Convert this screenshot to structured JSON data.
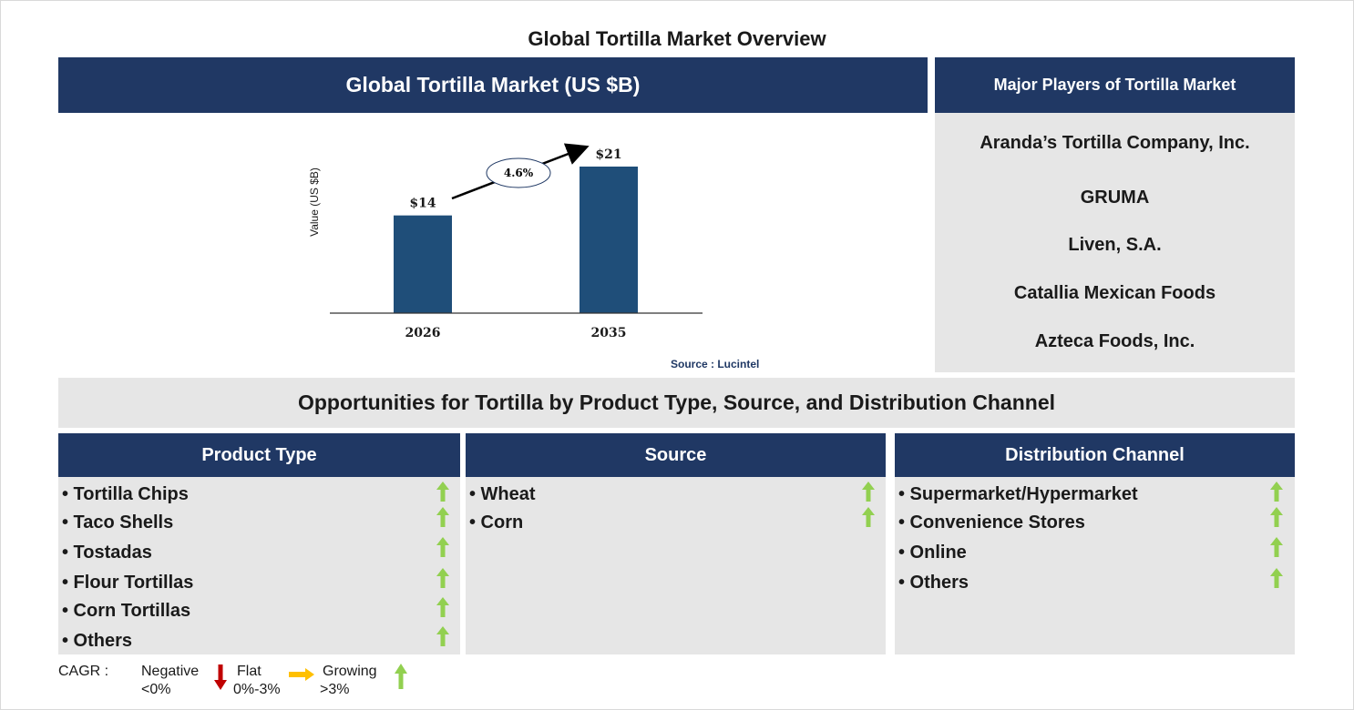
{
  "page_title": "Global Tortilla Market Overview",
  "market_header": "Global Tortilla Market (US $B)",
  "players": {
    "header": "Major Players of Tortilla Market",
    "items": [
      "Aranda’s Tortilla Company, Inc.",
      "GRUMA",
      "Liven, S.A.",
      "Catallia Mexican Foods",
      "Azteca Foods, Inc."
    ]
  },
  "chart_data": {
    "type": "bar",
    "categories": [
      "2026",
      "2035"
    ],
    "values": [
      14,
      21
    ],
    "value_labels": [
      "$14",
      "$21"
    ],
    "ylabel": "Value (US $B)",
    "ylim": [
      0,
      24
    ],
    "annotation": "4.6%",
    "bar_color": "#1f4e79",
    "grid": false
  },
  "source_note": "Source : Lucintel",
  "opportunities_title": "Opportunities for Tortilla by Product Type, Source, and Distribution Channel",
  "segments": {
    "product_type": {
      "header": "Product Type",
      "items": [
        "• Tortilla Chips",
        "• Taco Shells",
        "• Tostadas",
        "• Flour Tortillas",
        "• Corn Tortillas",
        "• Others"
      ]
    },
    "source": {
      "header": "Source",
      "items": [
        "• Wheat",
        "• Corn"
      ]
    },
    "distribution_channel": {
      "header": "Distribution Channel",
      "items": [
        "• Supermarket/Hypermarket",
        "• Convenience Stores",
        "• Online",
        "• Others"
      ]
    }
  },
  "legend": {
    "label": "CAGR :",
    "negative_line1": "Negative",
    "negative_line2": "<0%",
    "flat_line1": "Flat",
    "flat_line2": "0%-3%",
    "growing_line1": "Growing",
    "growing_line2": ">3%"
  },
  "colors": {
    "navy": "#203864",
    "bar": "#1f4e79",
    "panel_grey": "#e6e6e6",
    "arrow_green": "#92d050",
    "arrow_red": "#c00000",
    "arrow_orange": "#ffc000"
  }
}
